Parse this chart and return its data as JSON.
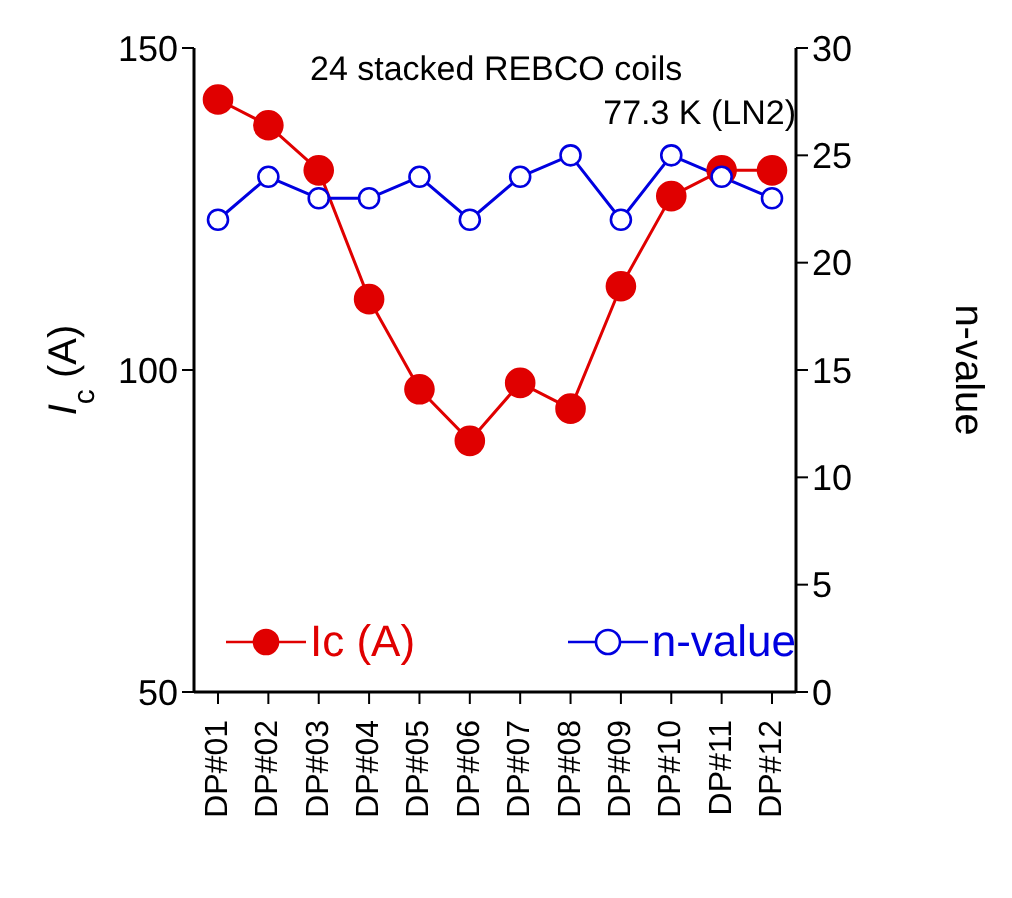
{
  "chart_data": {
    "type": "line",
    "categories": [
      "DP#01",
      "DP#02",
      "DP#03",
      "DP#04",
      "DP#05",
      "DP#06",
      "DP#07",
      "DP#08",
      "DP#09",
      "DP#10",
      "DP#11",
      "DP#12"
    ],
    "ylabel": "I$_{c}$ (A)",
    "y2label": "n-value",
    "annotations": [
      "24 stacked REBCO coils",
      "77.3 K (LN2)"
    ],
    "series": [
      {
        "name": "Ic (A)",
        "color": "#e00000",
        "values": [
          142,
          138,
          131,
          111,
          97,
          89,
          98,
          94,
          113,
          127,
          131,
          131
        ]
      },
      {
        "name": "n-value",
        "color": "#0000e0",
        "axis": "y2",
        "values": [
          22,
          24,
          23,
          23,
          24,
          22,
          24,
          25,
          22,
          25,
          24,
          23
        ]
      }
    ],
    "ylim": [
      50,
      150
    ],
    "yticks": [
      50,
      100,
      150
    ],
    "y2lim": [
      0,
      30
    ],
    "y2ticks": [
      0,
      5,
      10,
      15,
      20,
      25,
      30
    ],
    "marker": "circle",
    "legend": "bottom",
    "grid": false
  }
}
